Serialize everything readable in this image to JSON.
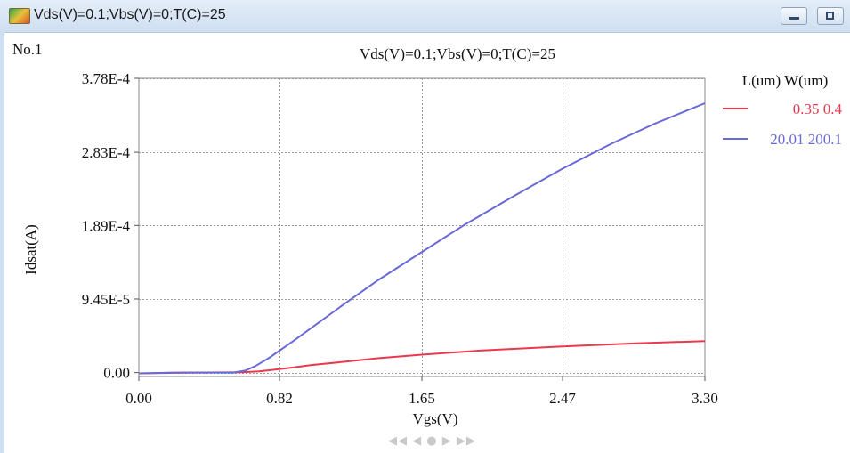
{
  "window": {
    "title": "Vds(V)=0.1;Vbs(V)=0;T(C)=25",
    "icon": "chart-app-icon",
    "controls": [
      "minimize-icon",
      "maximize-icon"
    ]
  },
  "panel_label": "No.1",
  "navigation": {
    "glyphs": "◀◀ ◀ ● ▶ ▶▶"
  },
  "chart_data": {
    "type": "line",
    "title": "Vds(V)=0.1;Vbs(V)=0;T(C)=25",
    "xlabel": "Vgs(V)",
    "ylabel": "Idsat(A)",
    "xlim": [
      0,
      3.3
    ],
    "ylim": [
      -5e-06,
      0.000378
    ],
    "x_ticks": [
      0.0,
      0.82,
      1.65,
      2.47,
      3.3
    ],
    "x_tick_labels": [
      "0.00",
      "0.82",
      "1.65",
      "2.47",
      "3.30"
    ],
    "y_ticks": [
      0.0,
      9.45e-05,
      0.000189,
      0.000283,
      0.000378
    ],
    "y_tick_labels": [
      "0.00",
      "9.45E-5",
      "1.89E-4",
      "2.83E-4",
      "3.78E-4"
    ],
    "grid": true,
    "legend_header": "L(um) W(um)",
    "legend_position": "right",
    "series": [
      {
        "name": "0.35 0.4",
        "color": "#e8394d",
        "x": [
          0.0,
          0.3,
          0.6,
          0.7,
          0.8,
          0.9,
          1.0,
          1.2,
          1.4,
          1.65,
          2.0,
          2.47,
          2.9,
          3.3
        ],
        "y": [
          -1e-06,
          0.0,
          5e-07,
          1.5e-06,
          4e-06,
          6.5e-06,
          9.5e-06,
          1.4e-05,
          1.85e-05,
          2.3e-05,
          2.85e-05,
          3.35e-05,
          3.75e-05,
          4.05e-05
        ]
      },
      {
        "name": "20.01 200.1",
        "color": "#6a6ad6",
        "x": [
          0.0,
          0.2,
          0.4,
          0.55,
          0.62,
          0.68,
          0.76,
          0.9,
          1.05,
          1.2,
          1.4,
          1.65,
          1.9,
          2.2,
          2.47,
          2.75,
          3.0,
          3.3
        ],
        "y": [
          -1e-06,
          0.0,
          0.0,
          0.0,
          2.5e-06,
          8.5e-06,
          1.9e-05,
          4.05e-05,
          6.45e-05,
          8.85e-05,
          0.0001195,
          0.000155,
          0.00019,
          0.0002285,
          0.000262,
          0.0002935,
          0.000319,
          0.000346
        ]
      }
    ]
  }
}
